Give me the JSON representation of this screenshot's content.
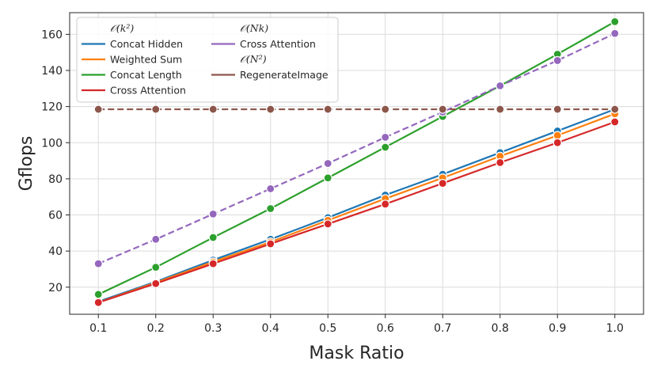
{
  "chart_data": {
    "type": "line",
    "xlabel": "Mask Ratio",
    "ylabel": "Gflops",
    "x": [
      0.1,
      0.2,
      0.3,
      0.4,
      0.5,
      0.6,
      0.7,
      0.8,
      0.9,
      1.0
    ],
    "x_ticks": [
      "0.1",
      "0.2",
      "0.3",
      "0.4",
      "0.5",
      "0.6",
      "0.7",
      "0.8",
      "0.9",
      "1.0"
    ],
    "xlim": [
      0.05,
      1.05
    ],
    "ylim": [
      5,
      172
    ],
    "y_ticks": [
      20,
      40,
      60,
      80,
      100,
      120,
      140,
      160
    ],
    "grid": true,
    "legend_placement": "top-left",
    "legend_groups": [
      {
        "heading": "𝒪(k²)",
        "series": [
          0,
          1,
          2,
          3
        ]
      },
      {
        "heading": "𝒪(Nk)",
        "series": [
          4
        ]
      },
      {
        "heading": "𝒪(N²)",
        "series": [
          5
        ]
      }
    ],
    "series": [
      {
        "name": "Concat Hidden",
        "color": "#1f77b4",
        "dash": false,
        "values": [
          12,
          23,
          35,
          46.5,
          58.5,
          71,
          82.5,
          94.5,
          106.5,
          118.5
        ]
      },
      {
        "name": "Weighted Sum",
        "color": "#ff7f0e",
        "dash": false,
        "values": [
          11.5,
          22.5,
          34,
          45,
          57,
          69,
          80.5,
          92.5,
          104,
          116
        ]
      },
      {
        "name": "Concat Length",
        "color": "#2ca02c",
        "dash": false,
        "values": [
          16,
          31,
          47.5,
          63.5,
          80.5,
          97.5,
          114.5,
          131.5,
          149,
          167
        ]
      },
      {
        "name": "Cross Attention",
        "color": "#d62728",
        "dash": false,
        "values": [
          11.5,
          22,
          33,
          44,
          55,
          66,
          77.5,
          89,
          100,
          111.5
        ]
      },
      {
        "name": "Cross Attention",
        "color": "#9467bd",
        "dash": true,
        "values": [
          33,
          46.5,
          60.5,
          74.5,
          88.5,
          103,
          117,
          131.5,
          145.5,
          160.5
        ]
      },
      {
        "name": "RegenerateImage",
        "color": "#8c564b",
        "dash": true,
        "values": [
          118.5,
          118.5,
          118.5,
          118.5,
          118.5,
          118.5,
          118.5,
          118.5,
          118.5,
          118.5
        ]
      }
    ]
  }
}
